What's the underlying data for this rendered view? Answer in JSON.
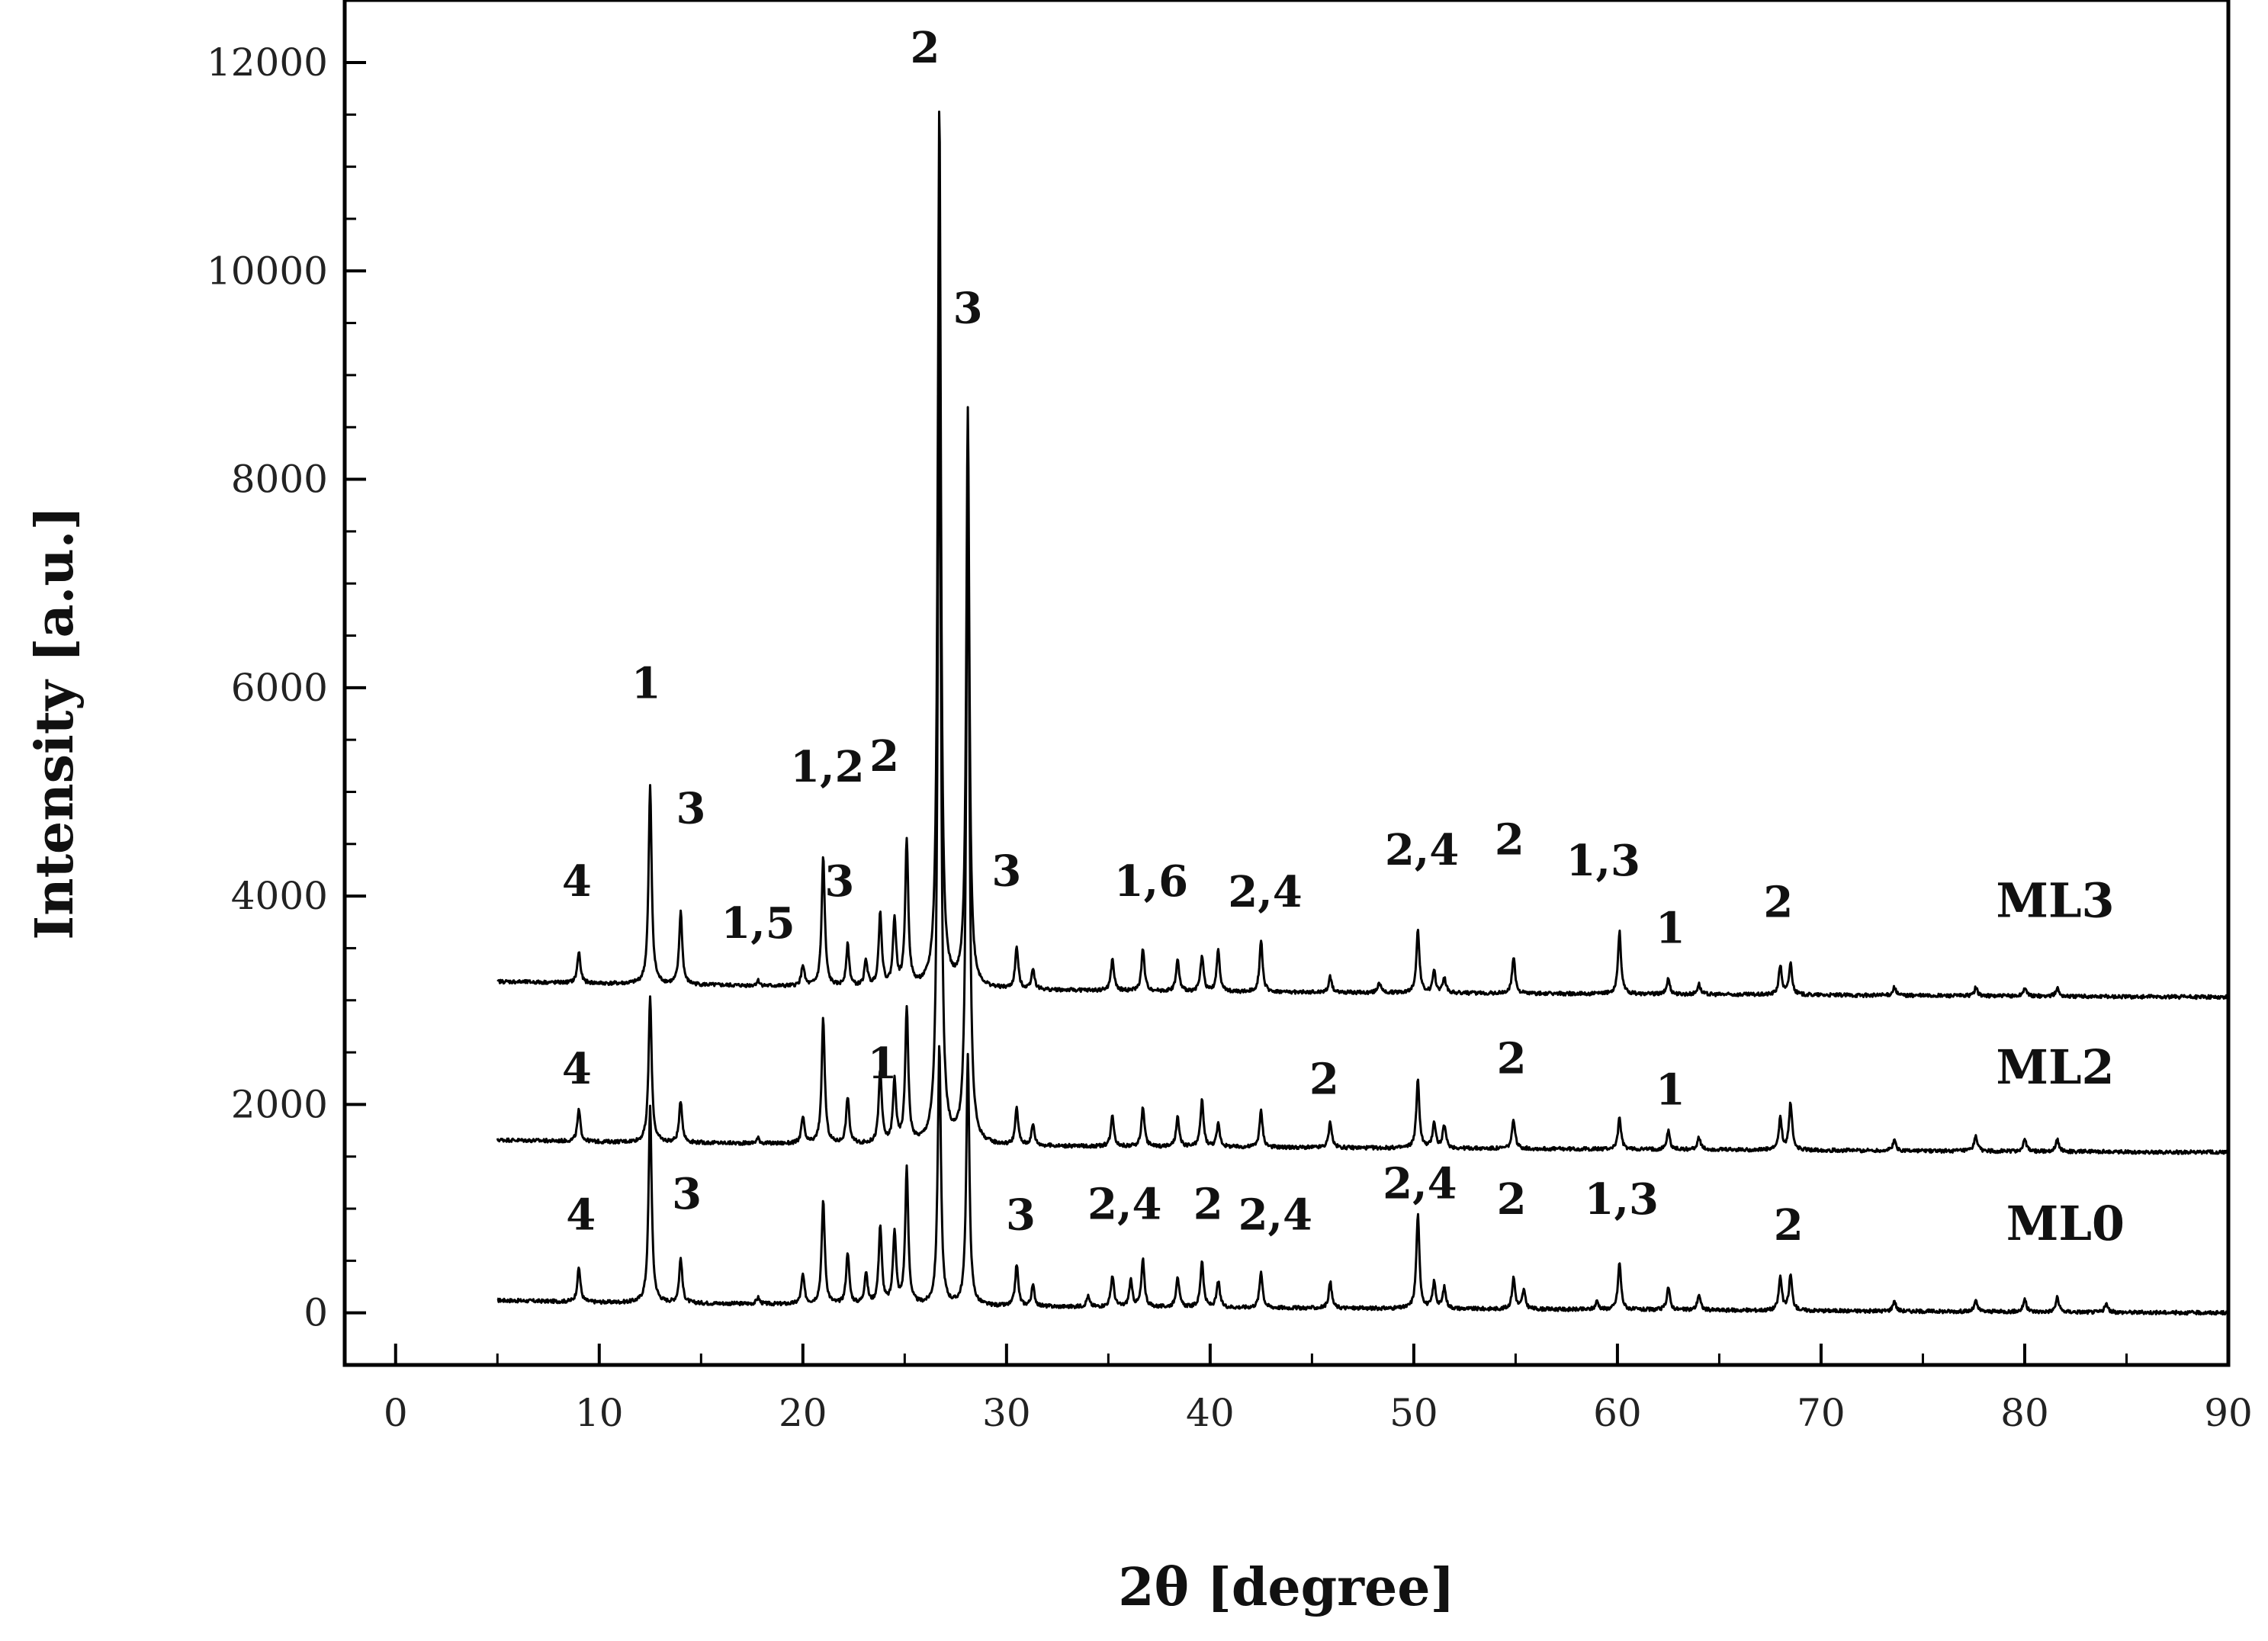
{
  "chart_data": {
    "type": "line",
    "xlabel": "2θ [degree]",
    "ylabel": "Intensity [a.u.]",
    "xlim": [
      -2.5,
      90
    ],
    "ylim": [
      -500,
      12600
    ],
    "x_ticks": [
      0,
      10,
      20,
      30,
      40,
      50,
      60,
      70,
      80,
      90
    ],
    "y_ticks": [
      0,
      2000,
      4000,
      6000,
      8000,
      10000,
      12000
    ],
    "grid": false,
    "legend": "none",
    "series": [
      {
        "name": "ML0",
        "baseline": [
          [
            5,
            120
          ],
          [
            10,
            100
          ],
          [
            20,
            80
          ],
          [
            30,
            60
          ],
          [
            40,
            50
          ],
          [
            50,
            40
          ],
          [
            60,
            30
          ],
          [
            70,
            20
          ],
          [
            80,
            10
          ],
          [
            90,
            0
          ]
        ],
        "peaks": [
          [
            9.0,
            330
          ],
          [
            12.5,
            1900
          ],
          [
            14.0,
            430
          ],
          [
            17.8,
            60
          ],
          [
            20.0,
            280
          ],
          [
            21.0,
            1000
          ],
          [
            22.2,
            500
          ],
          [
            23.1,
            300
          ],
          [
            23.8,
            750
          ],
          [
            24.5,
            700
          ],
          [
            25.1,
            1300
          ],
          [
            26.7,
            2500
          ],
          [
            28.1,
            2400
          ],
          [
            30.5,
            400
          ],
          [
            31.3,
            200
          ],
          [
            34.0,
            100
          ],
          [
            35.2,
            300
          ],
          [
            36.1,
            250
          ],
          [
            36.7,
            450
          ],
          [
            38.4,
            300
          ],
          [
            39.6,
            450
          ],
          [
            40.4,
            250
          ],
          [
            42.5,
            350
          ],
          [
            45.9,
            250
          ],
          [
            50.2,
            900
          ],
          [
            51.0,
            250
          ],
          [
            51.5,
            200
          ],
          [
            54.9,
            300
          ],
          [
            55.4,
            180
          ],
          [
            59.0,
            80
          ],
          [
            60.1,
            450
          ],
          [
            62.5,
            220
          ],
          [
            64.0,
            150
          ],
          [
            68.0,
            320
          ],
          [
            68.5,
            340
          ],
          [
            73.6,
            100
          ],
          [
            77.6,
            100
          ],
          [
            80.0,
            120
          ],
          [
            81.6,
            140
          ],
          [
            84.0,
            80
          ]
        ]
      },
      {
        "name": "ML2",
        "baseline": [
          [
            5,
            1660
          ],
          [
            10,
            1640
          ],
          [
            20,
            1620
          ],
          [
            30,
            1600
          ],
          [
            40,
            1590
          ],
          [
            50,
            1580
          ],
          [
            60,
            1570
          ],
          [
            70,
            1560
          ],
          [
            80,
            1550
          ],
          [
            90,
            1540
          ]
        ],
        "peaks": [
          [
            9.0,
            300
          ],
          [
            12.5,
            1400
          ],
          [
            14.0,
            400
          ],
          [
            17.8,
            50
          ],
          [
            20.0,
            250
          ],
          [
            21.0,
            1200
          ],
          [
            22.2,
            450
          ],
          [
            23.8,
            700
          ],
          [
            24.5,
            600
          ],
          [
            25.1,
            1300
          ],
          [
            26.7,
            8000
          ],
          [
            28.1,
            6600
          ],
          [
            30.5,
            350
          ],
          [
            31.3,
            200
          ],
          [
            35.2,
            300
          ],
          [
            36.7,
            380
          ],
          [
            38.4,
            280
          ],
          [
            39.6,
            450
          ],
          [
            40.4,
            220
          ],
          [
            42.5,
            350
          ],
          [
            45.9,
            250
          ],
          [
            50.2,
            650
          ],
          [
            51.0,
            250
          ],
          [
            51.5,
            220
          ],
          [
            54.9,
            280
          ],
          [
            60.1,
            300
          ],
          [
            62.5,
            180
          ],
          [
            64.0,
            120
          ],
          [
            68.0,
            300
          ],
          [
            68.5,
            450
          ],
          [
            73.6,
            100
          ],
          [
            77.6,
            150
          ],
          [
            80.0,
            120
          ],
          [
            81.6,
            120
          ]
        ]
      },
      {
        "name": "ML3",
        "baseline": [
          [
            5,
            3180
          ],
          [
            10,
            3160
          ],
          [
            20,
            3130
          ],
          [
            30,
            3100
          ],
          [
            40,
            3080
          ],
          [
            50,
            3070
          ],
          [
            60,
            3060
          ],
          [
            70,
            3050
          ],
          [
            80,
            3040
          ],
          [
            90,
            3030
          ]
        ],
        "peaks": [
          [
            9.0,
            300
          ],
          [
            12.5,
            1900
          ],
          [
            14.0,
            700
          ],
          [
            17.8,
            50
          ],
          [
            20.0,
            200
          ],
          [
            21.0,
            1250
          ],
          [
            22.2,
            400
          ],
          [
            23.1,
            250
          ],
          [
            23.8,
            700
          ],
          [
            24.5,
            650
          ],
          [
            25.1,
            1400
          ],
          [
            26.7,
            8500
          ],
          [
            28.1,
            5550
          ],
          [
            30.5,
            400
          ],
          [
            31.3,
            200
          ],
          [
            35.2,
            300
          ],
          [
            36.7,
            400
          ],
          [
            38.4,
            300
          ],
          [
            39.6,
            350
          ],
          [
            40.4,
            400
          ],
          [
            42.5,
            500
          ],
          [
            45.9,
            150
          ],
          [
            48.3,
            100
          ],
          [
            50.2,
            600
          ],
          [
            51.0,
            200
          ],
          [
            51.5,
            150
          ],
          [
            54.9,
            350
          ],
          [
            60.1,
            600
          ],
          [
            62.5,
            150
          ],
          [
            64.0,
            100
          ],
          [
            68.0,
            280
          ],
          [
            68.5,
            300
          ],
          [
            73.6,
            80
          ],
          [
            77.6,
            80
          ],
          [
            80.0,
            80
          ],
          [
            81.6,
            80
          ]
        ]
      }
    ],
    "series_labels": [
      {
        "text": "ML3",
        "x": 81.5,
        "y": 3800
      },
      {
        "text": "ML2",
        "x": 81.5,
        "y": 2200
      },
      {
        "text": "ML0",
        "x": 82.0,
        "y": 700
      }
    ],
    "annotations": [
      {
        "text": "4",
        "x": 8.9,
        "y": 4000
      },
      {
        "text": "1",
        "x": 12.3,
        "y": 5900
      },
      {
        "text": "3",
        "x": 14.5,
        "y": 4700
      },
      {
        "text": "1,5",
        "x": 17.8,
        "y": 3600
      },
      {
        "text": "1,2",
        "x": 21.2,
        "y": 5100
      },
      {
        "text": "2",
        "x": 24.0,
        "y": 5200
      },
      {
        "text": "3",
        "x": 21.8,
        "y": 4000
      },
      {
        "text": "2",
        "x": 26.0,
        "y": 12000
      },
      {
        "text": "3",
        "x": 28.1,
        "y": 9500
      },
      {
        "text": "3",
        "x": 30.0,
        "y": 4100
      },
      {
        "text": "1,6",
        "x": 37.1,
        "y": 4000
      },
      {
        "text": "2,4",
        "x": 42.7,
        "y": 3900
      },
      {
        "text": "2,4",
        "x": 50.4,
        "y": 4300
      },
      {
        "text": "2",
        "x": 54.7,
        "y": 4400
      },
      {
        "text": "1,3",
        "x": 59.3,
        "y": 4200
      },
      {
        "text": "1",
        "x": 62.6,
        "y": 3550
      },
      {
        "text": "2",
        "x": 67.9,
        "y": 3800
      },
      {
        "text": "4",
        "x": 8.9,
        "y": 2200
      },
      {
        "text": "1",
        "x": 23.9,
        "y": 2250
      },
      {
        "text": "2",
        "x": 45.6,
        "y": 2100
      },
      {
        "text": "2",
        "x": 54.8,
        "y": 2300
      },
      {
        "text": "1",
        "x": 62.6,
        "y": 2000
      },
      {
        "text": "4",
        "x": 9.1,
        "y": 800
      },
      {
        "text": "3",
        "x": 14.3,
        "y": 1000
      },
      {
        "text": "3",
        "x": 30.7,
        "y": 800
      },
      {
        "text": "2,4",
        "x": 35.8,
        "y": 900
      },
      {
        "text": "2",
        "x": 39.9,
        "y": 900
      },
      {
        "text": "2,4",
        "x": 43.2,
        "y": 800
      },
      {
        "text": "2,4",
        "x": 50.3,
        "y": 1100
      },
      {
        "text": "2",
        "x": 54.8,
        "y": 950
      },
      {
        "text": "1,3",
        "x": 60.2,
        "y": 950
      },
      {
        "text": "2",
        "x": 68.4,
        "y": 700
      }
    ]
  }
}
